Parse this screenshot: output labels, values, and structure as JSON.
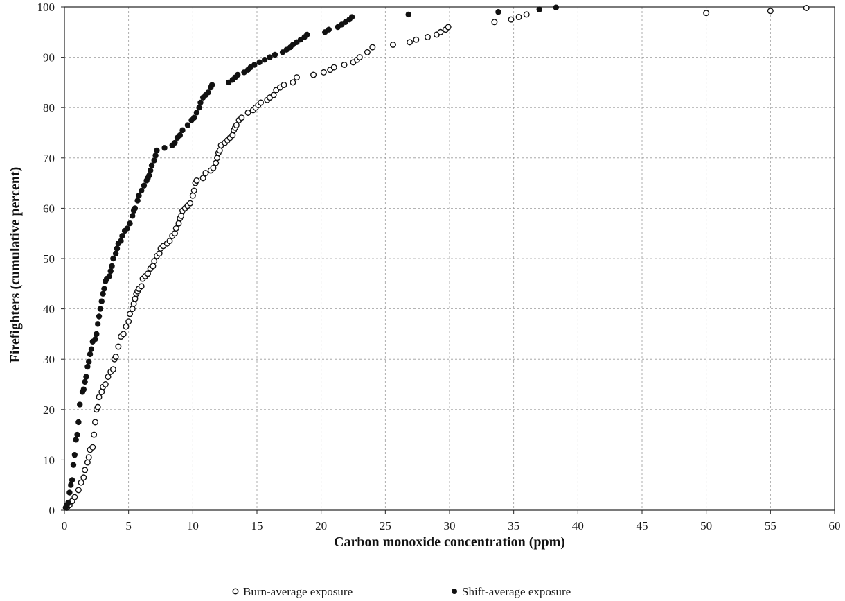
{
  "chart_data": {
    "type": "scatter",
    "xlabel": "Carbon monoxide concentration (ppm)",
    "ylabel": "Firefighters (cumulative percent)",
    "xlim": [
      0,
      60
    ],
    "ylim": [
      0,
      100
    ],
    "xticks": [
      0,
      5,
      10,
      15,
      20,
      25,
      30,
      35,
      40,
      45,
      50,
      55,
      60
    ],
    "yticks": [
      0,
      10,
      20,
      30,
      40,
      50,
      60,
      70,
      80,
      90,
      100
    ],
    "grid": true,
    "legend_position": "bottom",
    "series": [
      {
        "name": "Burn-average exposure",
        "marker": "open-circle",
        "color": "#111111",
        "points": [
          [
            0.2,
            0.5
          ],
          [
            0.4,
            1.0
          ],
          [
            0.6,
            1.8
          ],
          [
            0.8,
            2.6
          ],
          [
            1.1,
            4.0
          ],
          [
            1.3,
            5.5
          ],
          [
            1.5,
            6.5
          ],
          [
            1.6,
            8.0
          ],
          [
            1.8,
            9.5
          ],
          [
            1.9,
            10.5
          ],
          [
            2.0,
            12.0
          ],
          [
            2.2,
            12.5
          ],
          [
            2.3,
            15.0
          ],
          [
            2.4,
            17.5
          ],
          [
            2.5,
            20.0
          ],
          [
            2.6,
            20.5
          ],
          [
            2.7,
            22.5
          ],
          [
            2.9,
            23.5
          ],
          [
            3.0,
            24.5
          ],
          [
            3.2,
            25.0
          ],
          [
            3.4,
            26.5
          ],
          [
            3.6,
            27.5
          ],
          [
            3.8,
            28.0
          ],
          [
            3.9,
            30.0
          ],
          [
            4.0,
            30.5
          ],
          [
            4.2,
            32.5
          ],
          [
            4.4,
            34.5
          ],
          [
            4.6,
            35.0
          ],
          [
            4.8,
            36.5
          ],
          [
            5.0,
            37.5
          ],
          [
            5.1,
            39.0
          ],
          [
            5.3,
            40.0
          ],
          [
            5.4,
            41.0
          ],
          [
            5.5,
            42.0
          ],
          [
            5.6,
            43.0
          ],
          [
            5.7,
            43.5
          ],
          [
            5.8,
            44.0
          ],
          [
            6.0,
            44.5
          ],
          [
            6.1,
            46.0
          ],
          [
            6.3,
            46.5
          ],
          [
            6.5,
            47.0
          ],
          [
            6.7,
            48.0
          ],
          [
            6.9,
            48.5
          ],
          [
            7.0,
            49.5
          ],
          [
            7.2,
            50.5
          ],
          [
            7.4,
            51.0
          ],
          [
            7.5,
            52.0
          ],
          [
            7.7,
            52.5
          ],
          [
            8.0,
            53.0
          ],
          [
            8.2,
            53.5
          ],
          [
            8.4,
            54.5
          ],
          [
            8.6,
            55.0
          ],
          [
            8.7,
            56.0
          ],
          [
            8.9,
            57.0
          ],
          [
            9.0,
            58.0
          ],
          [
            9.1,
            58.5
          ],
          [
            9.2,
            59.5
          ],
          [
            9.4,
            60.0
          ],
          [
            9.6,
            60.5
          ],
          [
            9.8,
            61.0
          ],
          [
            10.0,
            62.5
          ],
          [
            10.1,
            63.5
          ],
          [
            10.2,
            65.0
          ],
          [
            10.3,
            65.5
          ],
          [
            10.8,
            66.0
          ],
          [
            11.0,
            67.0
          ],
          [
            11.4,
            67.5
          ],
          [
            11.6,
            68.0
          ],
          [
            11.8,
            69.0
          ],
          [
            11.9,
            70.0
          ],
          [
            12.0,
            71.0
          ],
          [
            12.1,
            71.5
          ],
          [
            12.2,
            72.5
          ],
          [
            12.5,
            73.0
          ],
          [
            12.7,
            73.5
          ],
          [
            12.9,
            74.0
          ],
          [
            13.1,
            74.5
          ],
          [
            13.2,
            75.5
          ],
          [
            13.3,
            76.0
          ],
          [
            13.4,
            76.5
          ],
          [
            13.6,
            77.5
          ],
          [
            13.8,
            78.0
          ],
          [
            14.3,
            79.0
          ],
          [
            14.7,
            79.5
          ],
          [
            14.9,
            80.0
          ],
          [
            15.1,
            80.5
          ],
          [
            15.3,
            81.0
          ],
          [
            15.8,
            81.5
          ],
          [
            16.0,
            82.0
          ],
          [
            16.3,
            82.5
          ],
          [
            16.5,
            83.5
          ],
          [
            16.8,
            84.0
          ],
          [
            17.1,
            84.5
          ],
          [
            17.8,
            85.0
          ],
          [
            18.1,
            86.0
          ],
          [
            19.4,
            86.5
          ],
          [
            20.2,
            87.0
          ],
          [
            20.7,
            87.5
          ],
          [
            21.0,
            88.0
          ],
          [
            21.8,
            88.5
          ],
          [
            22.5,
            89.0
          ],
          [
            22.8,
            89.5
          ],
          [
            23.0,
            90.0
          ],
          [
            23.6,
            91.0
          ],
          [
            24.0,
            92.0
          ],
          [
            25.6,
            92.5
          ],
          [
            26.9,
            93.0
          ],
          [
            27.4,
            93.5
          ],
          [
            28.3,
            94.0
          ],
          [
            29.0,
            94.5
          ],
          [
            29.3,
            95.0
          ],
          [
            29.7,
            95.5
          ],
          [
            29.9,
            96.0
          ],
          [
            33.5,
            97.0
          ],
          [
            34.8,
            97.5
          ],
          [
            35.4,
            98.0
          ],
          [
            36.0,
            98.5
          ],
          [
            50.0,
            98.8
          ],
          [
            55.0,
            99.2
          ],
          [
            57.8,
            99.8
          ]
        ]
      },
      {
        "name": "Shift-average exposure",
        "marker": "filled-circle",
        "color": "#111111",
        "points": [
          [
            0.1,
            0.5
          ],
          [
            0.2,
            1.0
          ],
          [
            0.3,
            1.5
          ],
          [
            0.4,
            3.5
          ],
          [
            0.5,
            5.0
          ],
          [
            0.6,
            6.0
          ],
          [
            0.7,
            9.0
          ],
          [
            0.8,
            11.0
          ],
          [
            0.9,
            14.0
          ],
          [
            1.0,
            15.0
          ],
          [
            1.1,
            17.5
          ],
          [
            1.2,
            21.0
          ],
          [
            1.4,
            23.5
          ],
          [
            1.5,
            24.0
          ],
          [
            1.6,
            25.5
          ],
          [
            1.7,
            26.5
          ],
          [
            1.8,
            28.5
          ],
          [
            1.9,
            29.5
          ],
          [
            2.0,
            31.0
          ],
          [
            2.1,
            32.0
          ],
          [
            2.2,
            33.5
          ],
          [
            2.4,
            34.0
          ],
          [
            2.5,
            35.0
          ],
          [
            2.6,
            37.0
          ],
          [
            2.7,
            38.5
          ],
          [
            2.8,
            40.0
          ],
          [
            2.9,
            41.5
          ],
          [
            3.0,
            43.0
          ],
          [
            3.1,
            44.0
          ],
          [
            3.2,
            45.5
          ],
          [
            3.3,
            46.0
          ],
          [
            3.5,
            46.5
          ],
          [
            3.6,
            47.5
          ],
          [
            3.7,
            48.5
          ],
          [
            3.8,
            50.0
          ],
          [
            4.0,
            51.0
          ],
          [
            4.1,
            52.0
          ],
          [
            4.2,
            53.0
          ],
          [
            4.4,
            53.5
          ],
          [
            4.5,
            54.5
          ],
          [
            4.7,
            55.5
          ],
          [
            4.9,
            56.0
          ],
          [
            5.1,
            57.0
          ],
          [
            5.3,
            58.5
          ],
          [
            5.4,
            59.5
          ],
          [
            5.5,
            60.0
          ],
          [
            5.7,
            61.5
          ],
          [
            5.8,
            62.5
          ],
          [
            6.0,
            63.5
          ],
          [
            6.2,
            64.5
          ],
          [
            6.4,
            65.5
          ],
          [
            6.5,
            66.0
          ],
          [
            6.6,
            66.5
          ],
          [
            6.7,
            67.5
          ],
          [
            6.8,
            68.5
          ],
          [
            7.0,
            69.5
          ],
          [
            7.1,
            70.5
          ],
          [
            7.2,
            71.5
          ],
          [
            7.8,
            72.0
          ],
          [
            8.4,
            72.5
          ],
          [
            8.6,
            73.0
          ],
          [
            8.8,
            74.0
          ],
          [
            9.0,
            74.5
          ],
          [
            9.2,
            75.5
          ],
          [
            9.6,
            76.5
          ],
          [
            9.9,
            77.5
          ],
          [
            10.1,
            78.0
          ],
          [
            10.3,
            79.0
          ],
          [
            10.5,
            80.0
          ],
          [
            10.6,
            81.0
          ],
          [
            10.8,
            82.0
          ],
          [
            11.0,
            82.5
          ],
          [
            11.2,
            83.0
          ],
          [
            11.4,
            84.0
          ],
          [
            11.5,
            84.5
          ],
          [
            12.8,
            85.0
          ],
          [
            13.1,
            85.5
          ],
          [
            13.3,
            86.0
          ],
          [
            13.5,
            86.5
          ],
          [
            14.0,
            87.0
          ],
          [
            14.3,
            87.5
          ],
          [
            14.5,
            88.0
          ],
          [
            14.8,
            88.5
          ],
          [
            15.2,
            89.0
          ],
          [
            15.6,
            89.5
          ],
          [
            16.0,
            90.0
          ],
          [
            16.4,
            90.5
          ],
          [
            17.0,
            91.0
          ],
          [
            17.3,
            91.5
          ],
          [
            17.6,
            92.0
          ],
          [
            17.8,
            92.5
          ],
          [
            18.1,
            93.0
          ],
          [
            18.4,
            93.5
          ],
          [
            18.7,
            94.0
          ],
          [
            18.9,
            94.5
          ],
          [
            20.3,
            95.0
          ],
          [
            20.6,
            95.5
          ],
          [
            21.3,
            96.0
          ],
          [
            21.6,
            96.5
          ],
          [
            21.9,
            97.0
          ],
          [
            22.2,
            97.5
          ],
          [
            22.4,
            98.0
          ],
          [
            26.8,
            98.5
          ],
          [
            33.8,
            99.0
          ],
          [
            37.0,
            99.5
          ],
          [
            38.3,
            99.9
          ]
        ]
      }
    ]
  }
}
